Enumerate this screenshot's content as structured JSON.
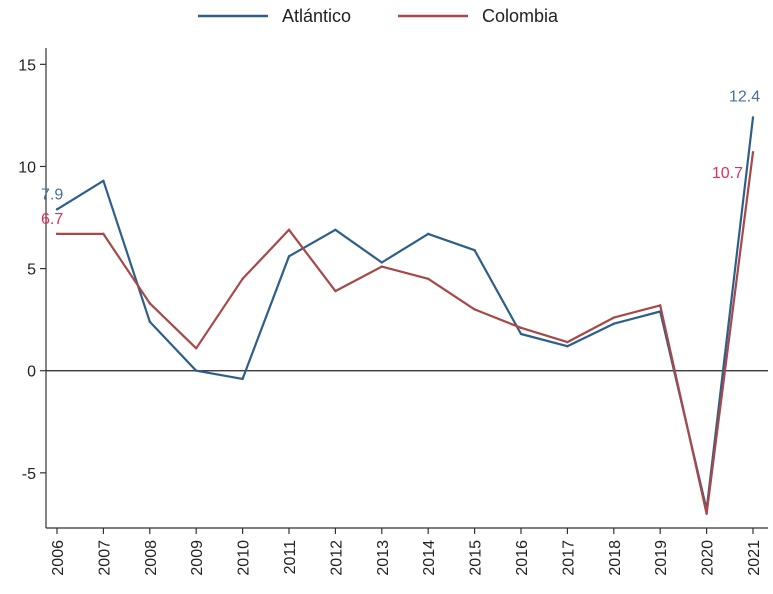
{
  "chart_data": {
    "type": "line",
    "x": [
      "2006",
      "2007",
      "2008",
      "2009",
      "2010",
      "2011",
      "2012",
      "2013",
      "2014",
      "2015",
      "2016",
      "2017",
      "2018",
      "2019",
      "2020",
      "2021"
    ],
    "series": [
      {
        "name": "Atlántico",
        "color": "#2e5f8a",
        "values": [
          7.9,
          9.3,
          2.4,
          0.0,
          -0.4,
          5.6,
          6.9,
          5.3,
          6.7,
          5.9,
          1.8,
          1.2,
          2.3,
          2.9,
          -6.8,
          12.4
        ]
      },
      {
        "name": "Colombia",
        "color": "#a84848",
        "values": [
          6.7,
          6.7,
          3.3,
          1.1,
          4.5,
          6.9,
          3.9,
          5.1,
          4.5,
          3.0,
          2.1,
          1.4,
          2.6,
          3.2,
          -7.0,
          10.7
        ]
      }
    ],
    "labels": [
      {
        "series": 0,
        "index": 0,
        "text": "7.9",
        "color": "#4a6f9a"
      },
      {
        "series": 1,
        "index": 0,
        "text": "6.7",
        "color": "#e0305a"
      },
      {
        "series": 0,
        "index": 15,
        "text": "12.4",
        "color": "#4a6f9a"
      },
      {
        "series": 1,
        "index": 15,
        "text": "10.7",
        "color": "#e0305a"
      }
    ],
    "yticks": [
      -5,
      0,
      5,
      10,
      15
    ],
    "ylim": [
      -7.7,
      15.8
    ],
    "zero_line": true,
    "grid": false,
    "legend_position": "top"
  }
}
